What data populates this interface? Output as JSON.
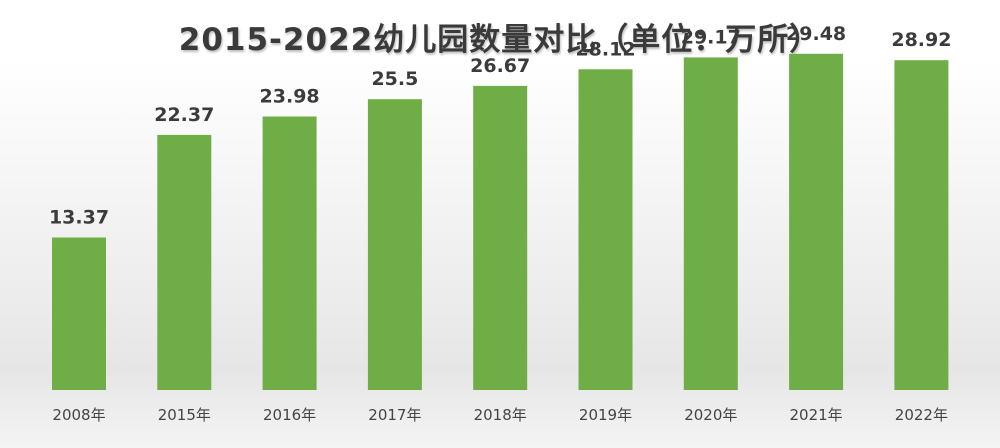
{
  "chart_data": {
    "type": "bar",
    "title": "2015-2022幼儿园数量对比（单位：万所）",
    "categories": [
      "2008年",
      "2015年",
      "2016年",
      "2017年",
      "2018年",
      "2019年",
      "2020年",
      "2021年",
      "2022年"
    ],
    "values": [
      13.37,
      22.37,
      23.98,
      25.5,
      26.67,
      28.12,
      29.17,
      29.48,
      28.92
    ],
    "value_labels": [
      "13.37",
      "22.37",
      "23.98",
      "25.5",
      "26.67",
      "28.12",
      "29.17",
      "29.48",
      "28.92"
    ],
    "xlabel": "",
    "ylabel": "",
    "ylim": [
      0,
      34.2
    ],
    "grid": false,
    "colors": {
      "bar": "#6fad47"
    }
  }
}
